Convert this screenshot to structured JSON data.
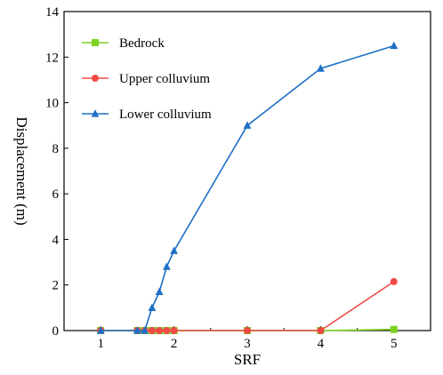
{
  "chart_data": {
    "type": "line",
    "title": "",
    "xlabel": "SRF",
    "ylabel": "Displacement  (m)",
    "xlim": [
      0.5,
      5.5
    ],
    "ylim": [
      0,
      14
    ],
    "xticks": [
      1,
      2,
      3,
      4,
      5
    ],
    "yticks": [
      0,
      2,
      4,
      6,
      8,
      10,
      12,
      14
    ],
    "grid": false,
    "legend_position": "top-left",
    "series": [
      {
        "name": "Bedrock",
        "color": "#7ed321",
        "marker": "square",
        "x": [
          1,
          1.5,
          1.6,
          1.7,
          1.8,
          1.9,
          2,
          3,
          4,
          5
        ],
        "y": [
          0,
          0,
          0,
          0,
          0,
          0,
          0,
          0,
          0,
          0.05
        ]
      },
      {
        "name": "Upper colluvium",
        "color": "#f04a45",
        "marker": "circle",
        "x": [
          1,
          1.5,
          1.6,
          1.7,
          1.8,
          1.9,
          2,
          3,
          4,
          5
        ],
        "y": [
          0,
          0,
          0,
          0,
          0,
          0,
          0,
          0,
          0,
          2.15
        ]
      },
      {
        "name": "Lower colluvium",
        "color": "#1f6fc5",
        "marker": "triangle",
        "x": [
          1,
          1.5,
          1.6,
          1.7,
          1.8,
          1.9,
          2,
          3,
          4,
          5
        ],
        "y": [
          0,
          0,
          0,
          1,
          1.7,
          2.8,
          3.5,
          9,
          11.5,
          12.5
        ]
      }
    ]
  }
}
